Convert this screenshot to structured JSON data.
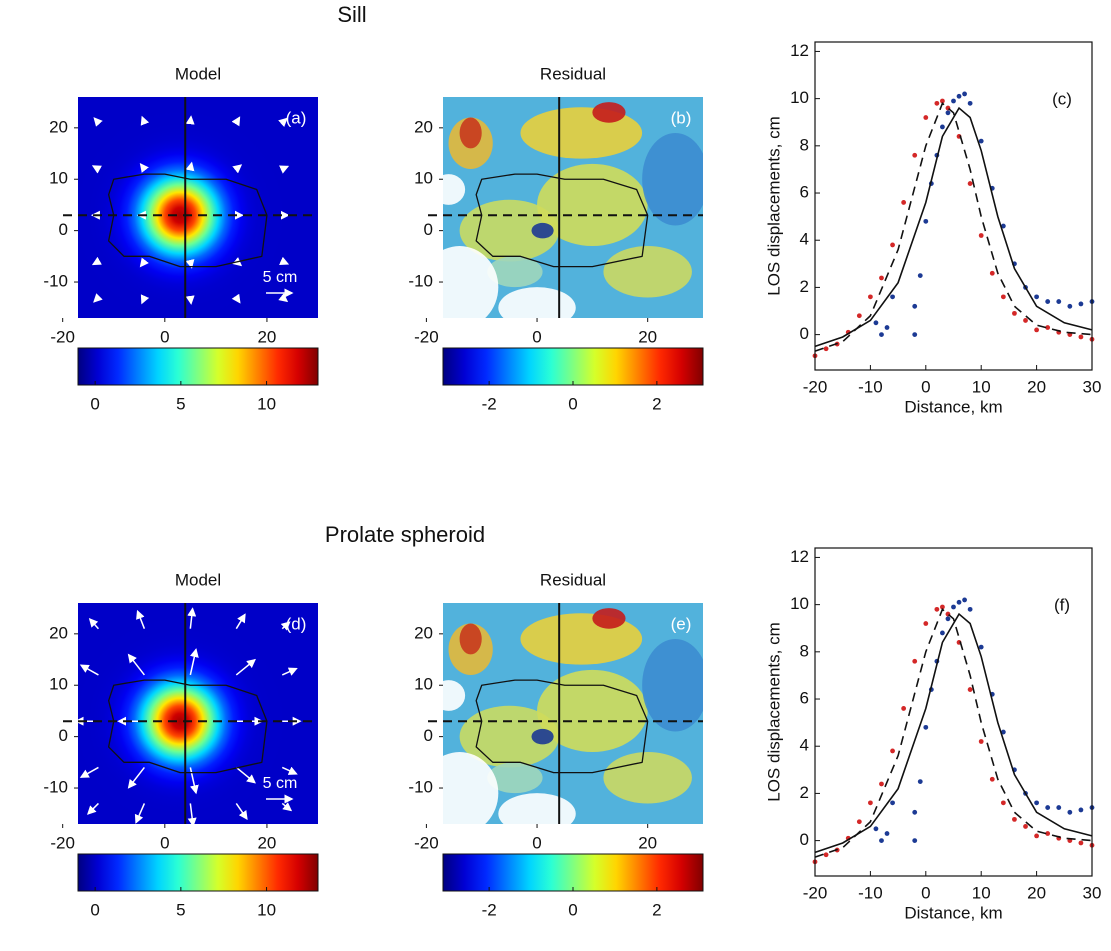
{
  "figure": {
    "row_titles": [
      "Sill",
      "Prolate spheroid"
    ]
  },
  "chart_data": [
    {
      "type": "heatmap",
      "title": "Model",
      "panel_label": "(a)",
      "xlim": [
        -17,
        30
      ],
      "ylim": [
        -17,
        26
      ],
      "xticks": [
        -20,
        0,
        20
      ],
      "yticks": [
        -10,
        0,
        10,
        20
      ],
      "profile_x": 4,
      "profile_y": 3,
      "source": [
        3,
        3
      ],
      "arrow_scale_label": "5 cm",
      "colorbar": {
        "lim": [
          -1,
          13
        ],
        "ticks": [
          0,
          5,
          10
        ]
      }
    },
    {
      "type": "residual",
      "title": "Residual",
      "panel_label": "(b)",
      "xlim": [
        -17,
        30
      ],
      "ylim": [
        -17,
        26
      ],
      "xticks": [
        -20,
        0,
        20
      ],
      "yticks": [
        -10,
        0,
        10,
        20
      ],
      "profile_x": 4,
      "profile_y": 3,
      "colorbar": {
        "lim": [
          -3.1,
          3.1
        ],
        "ticks": [
          -2,
          0,
          2
        ]
      }
    },
    {
      "type": "line",
      "panel_label": "(c)",
      "xlabel": "Distance, km",
      "ylabel": "LOS displacements, cm",
      "xlim": [
        -20,
        30
      ],
      "ylim": [
        -1.5,
        12.4
      ],
      "xticks": [
        -20,
        -10,
        0,
        10,
        20,
        30
      ],
      "yticks": [
        0,
        2,
        4,
        6,
        8,
        10,
        12
      ],
      "series": [
        {
          "style": "points",
          "color": "#d42828",
          "x": [
            -20,
            -18,
            -16,
            -14,
            -12,
            -10,
            -8,
            -6,
            -4,
            -2,
            0,
            2,
            3,
            4,
            6,
            8,
            10,
            12,
            14,
            16,
            18,
            20,
            22,
            24,
            26,
            28,
            30
          ],
          "values": [
            -0.9,
            -0.6,
            -0.4,
            0.1,
            0.8,
            1.6,
            2.4,
            3.8,
            5.6,
            7.6,
            9.2,
            9.8,
            9.9,
            9.6,
            8.4,
            6.4,
            4.2,
            2.6,
            1.6,
            0.9,
            0.6,
            0.2,
            0.3,
            0.1,
            0,
            -0.1,
            -0.2
          ]
        },
        {
          "style": "points",
          "color": "#1c3a94",
          "x": [
            -9,
            -8,
            -7,
            -6,
            -2,
            -2,
            -1,
            0,
            1,
            2,
            3,
            4,
            5,
            6,
            7,
            8,
            10,
            12,
            14,
            16,
            18,
            20,
            22,
            24,
            26,
            28,
            30
          ],
          "values": [
            0.5,
            0,
            0.3,
            1.6,
            0,
            1.2,
            2.5,
            4.8,
            6.4,
            7.6,
            8.8,
            9.4,
            9.9,
            10.1,
            10.2,
            9.8,
            8.2,
            6.2,
            4.6,
            3.0,
            2.0,
            1.6,
            1.4,
            1.4,
            1.2,
            1.3,
            1.4
          ]
        },
        {
          "style": "solid",
          "color": "#111111",
          "x": [
            -20,
            -15,
            -10,
            -5,
            0,
            3,
            6,
            8,
            10,
            13,
            16,
            20,
            25,
            30
          ],
          "values": [
            -0.5,
            -0.1,
            0.6,
            2.2,
            5.6,
            8.4,
            9.6,
            9.2,
            7.8,
            5.0,
            2.8,
            1.2,
            0.5,
            0.2
          ]
        },
        {
          "style": "dashed",
          "color": "#111111",
          "x": [
            -20,
            -15,
            -10,
            -5,
            0,
            3,
            5,
            8,
            10,
            13,
            16,
            20,
            25,
            30
          ],
          "values": [
            -0.7,
            -0.3,
            0.8,
            3.6,
            8.0,
            9.8,
            9.4,
            7.0,
            5.0,
            2.6,
            1.2,
            0.4,
            0.1,
            0
          ]
        }
      ]
    },
    {
      "type": "heatmap",
      "title": "Model",
      "panel_label": "(d)",
      "xlim": [
        -17,
        30
      ],
      "ylim": [
        -17,
        26
      ],
      "xticks": [
        -20,
        0,
        20
      ],
      "yticks": [
        -10,
        0,
        10,
        20
      ],
      "profile_x": 4,
      "profile_y": 3,
      "source": [
        3,
        3
      ],
      "arrow_scale_label": "5 cm",
      "colorbar": {
        "lim": [
          -1,
          13
        ],
        "ticks": [
          0,
          5,
          10
        ]
      }
    },
    {
      "type": "residual",
      "title": "Residual",
      "panel_label": "(e)",
      "xlim": [
        -17,
        30
      ],
      "ylim": [
        -17,
        26
      ],
      "xticks": [
        -20,
        0,
        20
      ],
      "yticks": [
        -10,
        0,
        10,
        20
      ],
      "profile_x": 4,
      "profile_y": 3,
      "colorbar": {
        "lim": [
          -3.1,
          3.1
        ],
        "ticks": [
          -2,
          0,
          2
        ]
      }
    },
    {
      "type": "line",
      "panel_label": "(f)",
      "xlabel": "Distance, km",
      "ylabel": "LOS displacements, cm",
      "xlim": [
        -20,
        30
      ],
      "ylim": [
        -1.5,
        12.4
      ],
      "xticks": [
        -20,
        -10,
        0,
        10,
        20,
        30
      ],
      "yticks": [
        0,
        2,
        4,
        6,
        8,
        10,
        12
      ],
      "series": [
        {
          "style": "points",
          "color": "#d42828",
          "x": [
            -20,
            -18,
            -16,
            -14,
            -12,
            -10,
            -8,
            -6,
            -4,
            -2,
            0,
            2,
            3,
            4,
            6,
            8,
            10,
            12,
            14,
            16,
            18,
            20,
            22,
            24,
            26,
            28,
            30
          ],
          "values": [
            -0.9,
            -0.6,
            -0.4,
            0.1,
            0.8,
            1.6,
            2.4,
            3.8,
            5.6,
            7.6,
            9.2,
            9.8,
            9.9,
            9.6,
            8.4,
            6.4,
            4.2,
            2.6,
            1.6,
            0.9,
            0.6,
            0.2,
            0.3,
            0.1,
            0,
            -0.1,
            -0.2
          ]
        },
        {
          "style": "points",
          "color": "#1c3a94",
          "x": [
            -9,
            -8,
            -7,
            -6,
            -2,
            -2,
            -1,
            0,
            1,
            2,
            3,
            4,
            5,
            6,
            7,
            8,
            10,
            12,
            14,
            16,
            18,
            20,
            22,
            24,
            26,
            28,
            30
          ],
          "values": [
            0.5,
            0,
            0.3,
            1.6,
            0,
            1.2,
            2.5,
            4.8,
            6.4,
            7.6,
            8.8,
            9.4,
            9.9,
            10.1,
            10.2,
            9.8,
            8.2,
            6.2,
            4.6,
            3.0,
            2.0,
            1.6,
            1.4,
            1.4,
            1.2,
            1.3,
            1.4
          ]
        },
        {
          "style": "solid",
          "color": "#111111",
          "x": [
            -20,
            -15,
            -10,
            -5,
            0,
            3,
            6,
            8,
            10,
            13,
            16,
            20,
            25,
            30
          ],
          "values": [
            -0.5,
            -0.1,
            0.6,
            2.2,
            5.6,
            8.4,
            9.6,
            9.2,
            7.8,
            5.0,
            2.8,
            1.2,
            0.5,
            0.2
          ]
        },
        {
          "style": "dashed",
          "color": "#111111",
          "x": [
            -20,
            -15,
            -10,
            -5,
            0,
            3,
            5,
            8,
            10,
            13,
            16,
            20,
            25,
            30
          ],
          "values": [
            -0.7,
            -0.3,
            0.8,
            3.6,
            8.0,
            9.8,
            9.4,
            7.0,
            5.0,
            2.6,
            1.2,
            0.4,
            0.1,
            0
          ]
        }
      ]
    }
  ]
}
